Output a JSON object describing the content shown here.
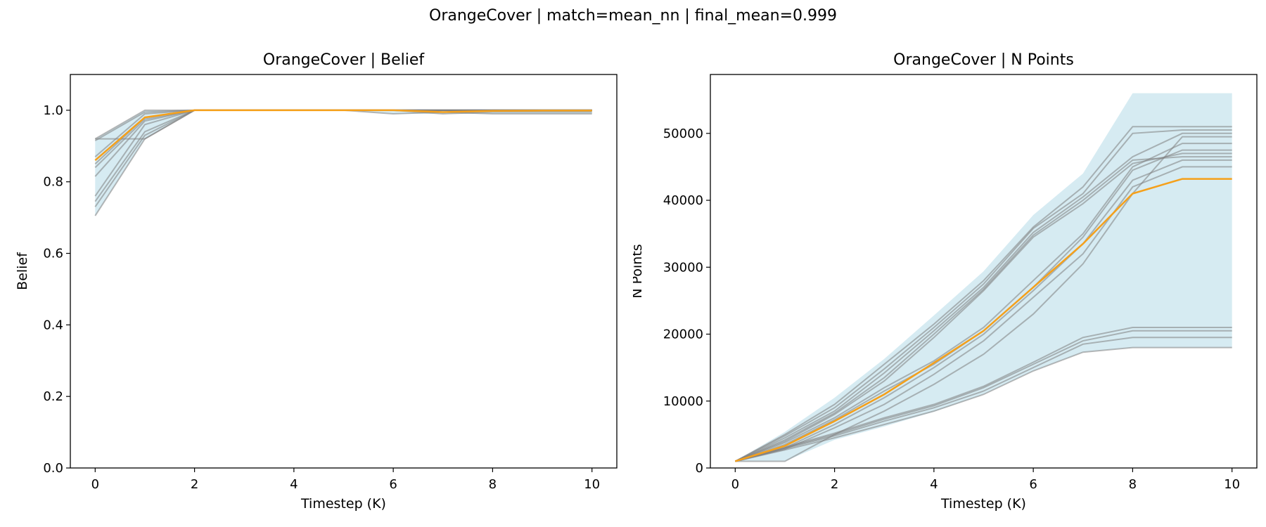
{
  "figure": {
    "suptitle": "OrangeCover | match=mean_nn | final_mean=0.999"
  },
  "colors": {
    "band": "#add8e6",
    "run": "#808080",
    "mean": "#f5a01a",
    "axes": "#000000"
  },
  "chart_data": [
    {
      "type": "line",
      "title": "OrangeCover | Belief",
      "xlabel": "Timestep (K)",
      "ylabel": "Belief",
      "xlim": [
        -0.5,
        10.5
      ],
      "ylim": [
        0,
        1.1
      ],
      "xticks": [
        0,
        2,
        4,
        6,
        8,
        10
      ],
      "yticks": [
        0.0,
        0.2,
        0.4,
        0.6,
        0.8,
        1.0
      ],
      "ytick_labels": [
        "0.0",
        "0.2",
        "0.4",
        "0.6",
        "0.8",
        "1.0"
      ],
      "grid": false,
      "x": [
        0,
        1,
        2,
        3,
        4,
        5,
        6,
        7,
        8,
        9,
        10
      ],
      "band": {
        "lower": [
          0.705,
          0.92,
          1.0,
          1.0,
          1.0,
          1.0,
          0.99,
          0.99,
          0.99,
          0.99,
          0.99
        ],
        "upper": [
          0.92,
          1.0,
          1.0,
          1.0,
          1.0,
          1.0,
          1.0,
          1.0,
          1.0,
          1.0,
          1.0
        ]
      },
      "runs": [
        [
          0.92,
          1.0,
          1.0,
          1.0,
          1.0,
          1.0,
          1.0,
          1.0,
          1.0,
          1.0,
          1.0
        ],
        [
          0.915,
          0.995,
          1.0,
          1.0,
          1.0,
          1.0,
          1.0,
          0.995,
          1.0,
          1.0,
          1.0
        ],
        [
          0.87,
          0.99,
          1.0,
          1.0,
          1.0,
          1.0,
          1.0,
          1.0,
          1.0,
          1.0,
          1.0
        ],
        [
          0.85,
          0.98,
          1.0,
          1.0,
          1.0,
          1.0,
          1.0,
          0.99,
          0.995,
          0.995,
          0.995
        ],
        [
          0.84,
          0.975,
          1.0,
          1.0,
          1.0,
          1.0,
          1.0,
          1.0,
          1.0,
          1.0,
          1.0
        ],
        [
          0.815,
          0.97,
          1.0,
          1.0,
          1.0,
          1.0,
          0.99,
          0.995,
          0.99,
          0.99,
          0.99
        ],
        [
          0.76,
          0.96,
          1.0,
          1.0,
          1.0,
          1.0,
          1.0,
          1.0,
          1.0,
          1.0,
          1.0
        ],
        [
          0.745,
          0.94,
          1.0,
          1.0,
          1.0,
          1.0,
          1.0,
          1.0,
          1.0,
          1.0,
          1.0
        ],
        [
          0.73,
          0.93,
          1.0,
          1.0,
          1.0,
          1.0,
          1.0,
          1.0,
          1.0,
          1.0,
          1.0
        ],
        [
          0.705,
          0.92,
          1.0,
          1.0,
          1.0,
          1.0,
          1.0,
          1.0,
          1.0,
          1.0,
          1.0
        ],
        [
          0.92,
          0.92,
          1.0,
          1.0,
          1.0,
          1.0,
          1.0,
          1.0,
          1.0,
          1.0,
          1.0
        ]
      ],
      "mean": [
        0.86,
        0.98,
        1.0,
        1.0,
        1.0,
        1.0,
        1.0,
        0.995,
        0.998,
        0.999,
        0.999
      ]
    },
    {
      "type": "line",
      "title": "OrangeCover | N Points",
      "xlabel": "Timestep (K)",
      "ylabel": "N Points",
      "xlim": [
        -0.5,
        10.5
      ],
      "ylim": [
        0,
        58800
      ],
      "xticks": [
        0,
        2,
        4,
        6,
        8,
        10
      ],
      "yticks": [
        0,
        10000,
        20000,
        30000,
        40000,
        50000
      ],
      "ytick_labels": [
        "0",
        "10000",
        "20000",
        "30000",
        "40000",
        "50000"
      ],
      "grid": false,
      "x": [
        0,
        1,
        2,
        3,
        4,
        5,
        6,
        7,
        8,
        9,
        10
      ],
      "band": {
        "lower": [
          1000,
          1000,
          4200,
          6200,
          8400,
          11000,
          14500,
          17300,
          18000,
          18000,
          18000
        ],
        "upper": [
          1000,
          5400,
          10500,
          16300,
          22800,
          29400,
          37800,
          44000,
          56000,
          56000,
          56000
        ]
      },
      "runs": [
        [
          1000,
          5000,
          9500,
          15500,
          21500,
          28000,
          36000,
          42000,
          51000,
          51000,
          51000
        ],
        [
          1000,
          4800,
          9000,
          14800,
          21000,
          27500,
          35800,
          41000,
          50000,
          50500,
          50500
        ],
        [
          1000,
          4500,
          8500,
          14200,
          20500,
          27000,
          35200,
          40500,
          46500,
          50000,
          50000
        ],
        [
          1000,
          4200,
          8200,
          13500,
          20000,
          26700,
          34800,
          40000,
          46000,
          46500,
          46500
        ],
        [
          1000,
          4000,
          8000,
          13000,
          19500,
          26500,
          34500,
          39500,
          45500,
          47000,
          47000
        ],
        [
          1000,
          3800,
          7500,
          12000,
          16000,
          21000,
          28000,
          35000,
          45000,
          48500,
          48500
        ],
        [
          1000,
          3500,
          7200,
          11500,
          15500,
          20500,
          27000,
          34500,
          44500,
          47500,
          47500
        ],
        [
          1000,
          3000,
          6500,
          10500,
          15000,
          20000,
          26500,
          33500,
          43000,
          46000,
          46000
        ],
        [
          1000,
          2800,
          6000,
          9500,
          14000,
          19000,
          25500,
          32000,
          42000,
          45000,
          45000
        ],
        [
          1000,
          1000,
          5000,
          8500,
          12500,
          17000,
          23000,
          30500,
          41000,
          49500,
          49500
        ],
        [
          1000,
          2700,
          4500,
          6500,
          8500,
          11000,
          14500,
          17300,
          18000,
          18000,
          18000
        ],
        [
          1000,
          2900,
          4800,
          7000,
          9000,
          11500,
          15000,
          18500,
          19500,
          19500,
          19500
        ],
        [
          1000,
          3000,
          5000,
          7300,
          9300,
          12000,
          15500,
          19000,
          20500,
          20500,
          20500
        ],
        [
          1000,
          3100,
          5200,
          7500,
          9500,
          12200,
          15800,
          19500,
          21000,
          21000,
          21000
        ]
      ],
      "mean": [
        1000,
        3300,
        7000,
        11000,
        15700,
        20500,
        27000,
        33500,
        41000,
        43200,
        43200
      ]
    }
  ]
}
